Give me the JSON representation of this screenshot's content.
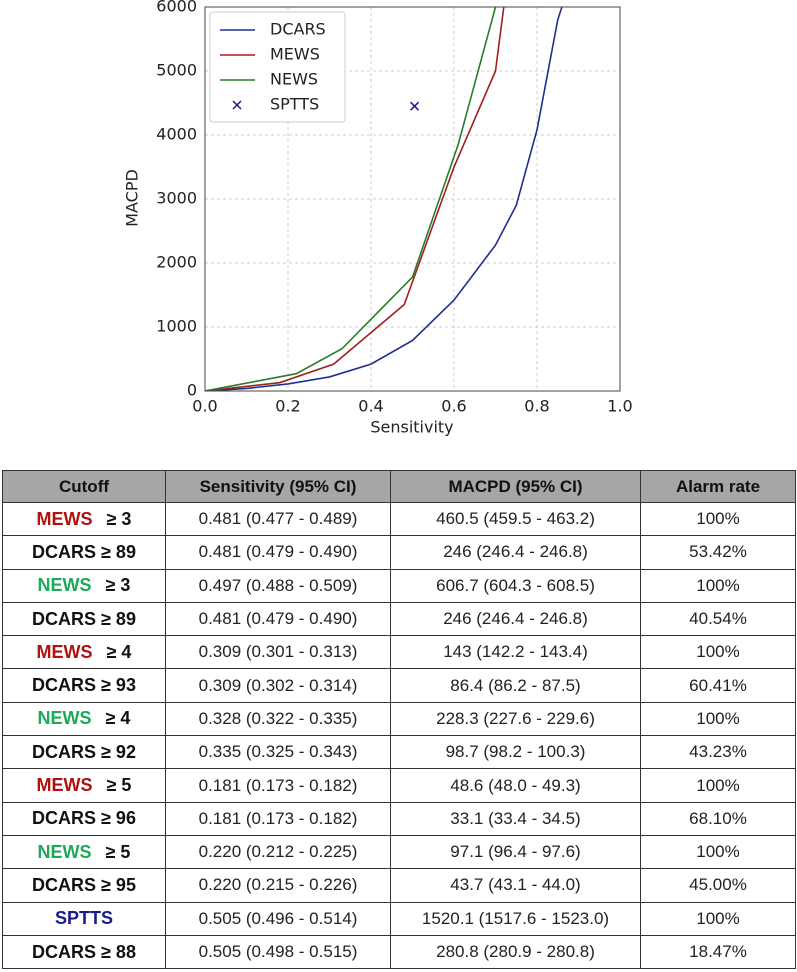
{
  "chart_data": {
    "type": "line",
    "xlabel": "Sensitivity",
    "ylabel": "MACPD",
    "xlim": [
      0,
      1
    ],
    "xticks": [
      {
        "value": 0,
        "label": "0.0"
      },
      0.2,
      0.4,
      0.6,
      0.8,
      {
        "value": 1,
        "label": "1.0"
      }
    ],
    "ylim": [
      0,
      6000
    ],
    "yticks": [
      0,
      1000,
      2000,
      3000,
      4000,
      5000,
      6000
    ],
    "grid": true,
    "legend": "upper left",
    "series": [
      {
        "name": "DCARS",
        "color": "#1f2f8f",
        "x": [
          0,
          0.1,
          0.2,
          0.3,
          0.4,
          0.5,
          0.6,
          0.7,
          0.75,
          0.8,
          0.85,
          0.86
        ],
        "values": [
          0,
          40,
          110,
          220,
          420,
          790,
          1420,
          2280,
          2900,
          4080,
          5800,
          6000
        ]
      },
      {
        "name": "MEWS",
        "color": "#a0201e",
        "x": [
          0,
          0.18,
          0.31,
          0.48,
          0.6,
          0.7,
          0.72
        ],
        "values": [
          0,
          130,
          420,
          1350,
          3500,
          5000,
          6000
        ]
      },
      {
        "name": "NEWS",
        "color": "#2a7d2a",
        "x": [
          0,
          0.22,
          0.33,
          0.5,
          0.61,
          0.7
        ],
        "values": [
          0,
          270,
          660,
          1780,
          3850,
          6000
        ]
      },
      {
        "name": "SPTTS",
        "color": "#1a1a8c",
        "marker": "x",
        "x": [
          0.505
        ],
        "values": [
          4450
        ]
      }
    ]
  },
  "table": {
    "header": [
      "Cutoff",
      "Sensitivity (95% CI)",
      "MACPD (95% CI)",
      "Alarm rate"
    ],
    "rows": [
      {
        "cutoff": [
          {
            "text": "MEWS",
            "color": "#b01010"
          },
          {
            "text": "≥ 3"
          }
        ],
        "cells": [
          "0.481 (0.477 - 0.489)",
          "460.5 (459.5 - 463.2)",
          "100%"
        ]
      },
      {
        "cutoff": [
          {
            "text": "DCARS ≥ 89"
          }
        ],
        "cells": [
          "0.481 (0.479 - 0.490)",
          "246 (246.4 - 246.8)",
          "53.42%"
        ]
      },
      {
        "cutoff": [
          {
            "text": "NEWS",
            "color": "#1ea85a"
          },
          {
            "text": "≥ 3"
          }
        ],
        "cells": [
          "0.497 (0.488 - 0.509)",
          "606.7 (604.3 - 608.5)",
          "100%"
        ]
      },
      {
        "cutoff": [
          {
            "text": "DCARS ≥ 89"
          }
        ],
        "cells": [
          "0.481 (0.479 - 0.490)",
          "246 (246.4 - 246.8)",
          "40.54%"
        ]
      },
      {
        "cutoff": [
          {
            "text": "MEWS",
            "color": "#b01010"
          },
          {
            "text": "≥ 4"
          }
        ],
        "cells": [
          "0.309 (0.301 - 0.313)",
          "143 (142.2 - 143.4)",
          "100%"
        ]
      },
      {
        "cutoff": [
          {
            "text": "DCARS ≥ 93"
          }
        ],
        "cells": [
          "0.309 (0.302 - 0.314)",
          "86.4 (86.2 - 87.5)",
          "60.41%"
        ]
      },
      {
        "cutoff": [
          {
            "text": "NEWS",
            "color": "#1ea85a"
          },
          {
            "text": "≥ 4"
          }
        ],
        "cells": [
          "0.328 (0.322 - 0.335)",
          "228.3 (227.6 - 229.6)",
          "100%"
        ]
      },
      {
        "cutoff": [
          {
            "text": "DCARS ≥ 92"
          }
        ],
        "cells": [
          "0.335 (0.325 - 0.343)",
          "98.7 (98.2 - 100.3)",
          "43.23%"
        ]
      },
      {
        "cutoff": [
          {
            "text": "MEWS",
            "color": "#b01010"
          },
          {
            "text": "≥ 5"
          }
        ],
        "cells": [
          "0.181 (0.173 - 0.182)",
          "48.6 (48.0 - 49.3)",
          "100%"
        ]
      },
      {
        "cutoff": [
          {
            "text": "DCARS ≥ 96"
          }
        ],
        "cells": [
          "0.181 (0.173 - 0.182)",
          "33.1 (33.4 - 34.5)",
          "68.10%"
        ]
      },
      {
        "cutoff": [
          {
            "text": "NEWS",
            "color": "#1ea85a"
          },
          {
            "text": "≥ 5"
          }
        ],
        "cells": [
          "0.220 (0.212 - 0.225)",
          "97.1 (96.4 - 97.6)",
          "100%"
        ]
      },
      {
        "cutoff": [
          {
            "text": "DCARS ≥ 95"
          }
        ],
        "cells": [
          "0.220 (0.215 - 0.226)",
          "43.7 (43.1 - 44.0)",
          "45.00%"
        ]
      },
      {
        "cutoff": [
          {
            "text": "SPTTS",
            "color": "#1a1a8c"
          }
        ],
        "cells": [
          "0.505 (0.496 - 0.514)",
          "1520.1 (1517.6 - 1523.0)",
          "100%"
        ]
      },
      {
        "cutoff": [
          {
            "text": "DCARS ≥ 88"
          }
        ],
        "cells": [
          "0.505 (0.498 - 0.515)",
          "280.8 (280.9 - 280.8)",
          "18.47%"
        ]
      }
    ]
  }
}
